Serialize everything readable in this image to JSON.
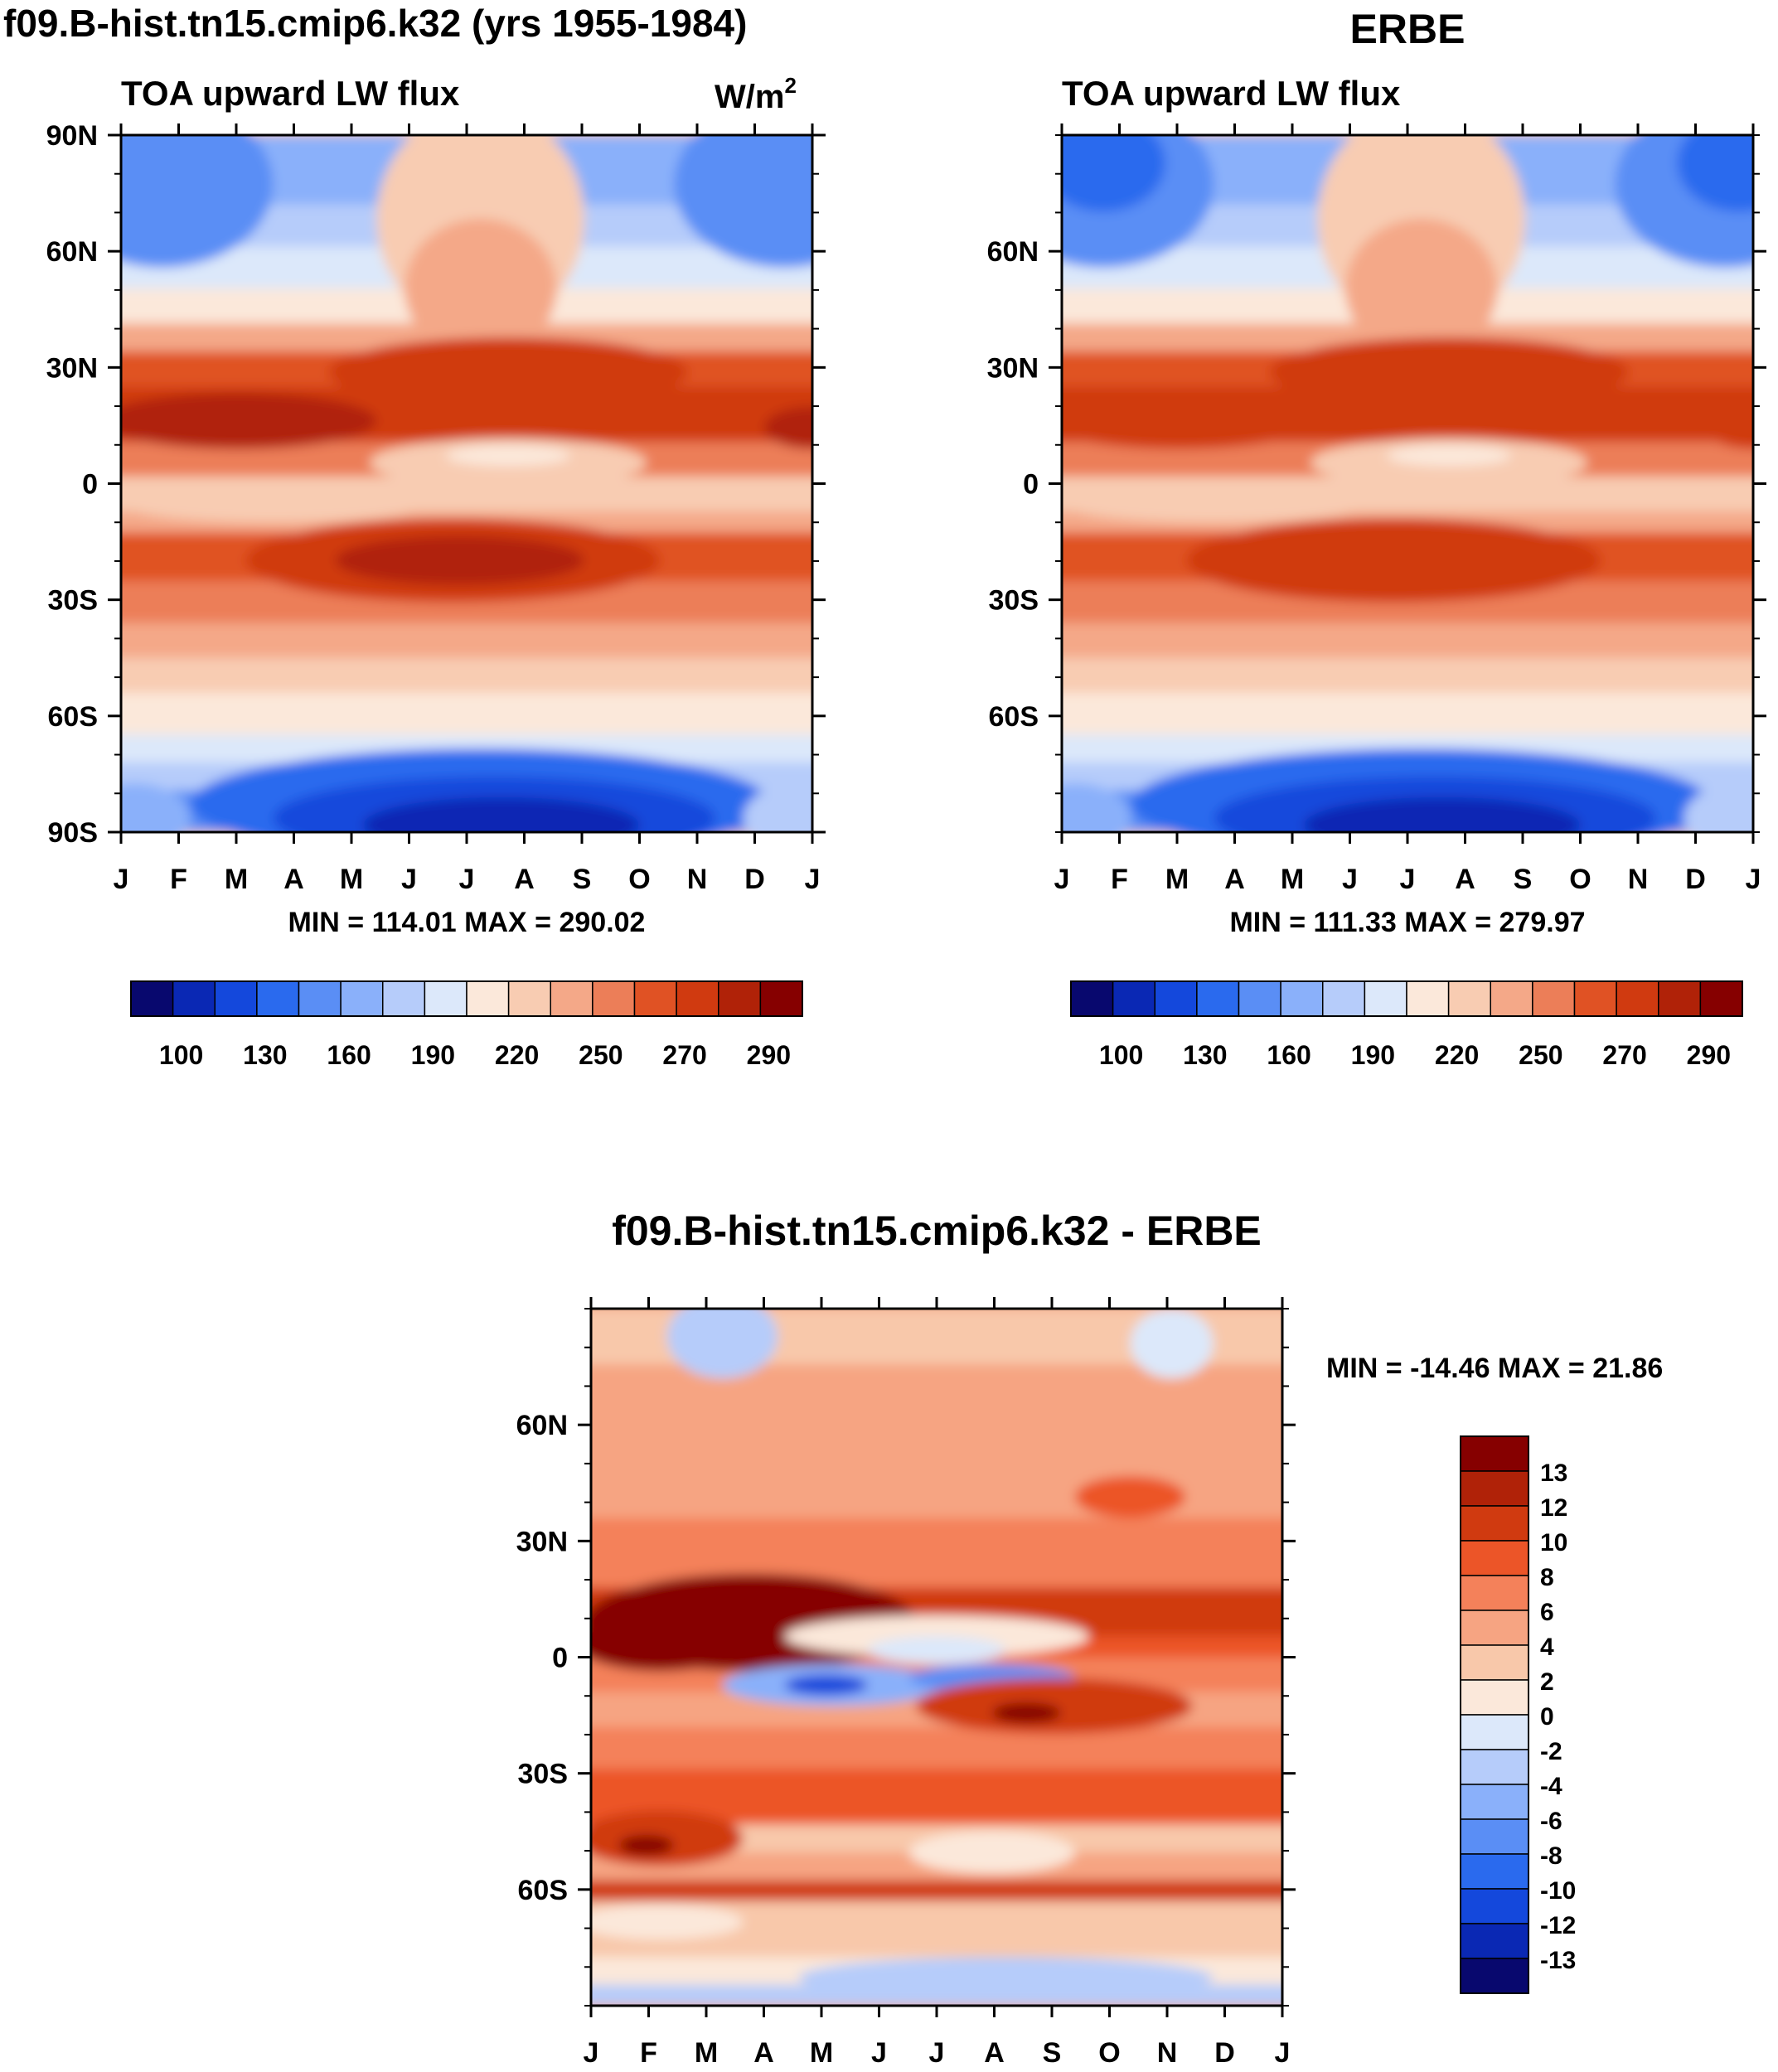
{
  "units_label": "W/m",
  "units_sup": "2",
  "colors": {
    "abs_levels": [
      "#08086e",
      "#0a28b4",
      "#1448dc",
      "#2a6aee",
      "#5a8ef5",
      "#8ab0fa",
      "#b6ccfa",
      "#dce8fa",
      "#fbe8da",
      "#f8ccb2",
      "#f4a888",
      "#ec7e58",
      "#e05224",
      "#d03a10",
      "#b02208",
      "#860000"
    ],
    "diff_levels": [
      "#860000",
      "#b02208",
      "#d03a10",
      "#ec5528",
      "#f4815a",
      "#f6a482",
      "#f8c8aa",
      "#fbe8da",
      "#dce8fa",
      "#b6ccfa",
      "#8ab0fa",
      "#5a8ef5",
      "#2a6aee",
      "#1448dc",
      "#0a28b4",
      "#08086e"
    ]
  },
  "chart_data": [
    {
      "type": "heatmap",
      "title": "f09.B-hist.tn15.cmip6.k32 (yrs 1955-1984)",
      "subtitle": "TOA upward LW flux",
      "units": "W/m2",
      "x_tick_labels": [
        "J",
        "F",
        "M",
        "A",
        "M",
        "J",
        "J",
        "A",
        "S",
        "O",
        "N",
        "D",
        "J"
      ],
      "y_tick_labels": [
        "90N",
        "60N",
        "30N",
        "0",
        "30S",
        "60S",
        "90S"
      ],
      "ylim": [
        -90,
        90
      ],
      "stats": "MIN = 114.01 MAX = 290.02",
      "colorbar_labels": [
        "100",
        "130",
        "160",
        "190",
        "220",
        "250",
        "270",
        "290"
      ],
      "min": 114.01,
      "max": 290.02
    },
    {
      "type": "heatmap",
      "title": "ERBE",
      "subtitle": "TOA upward LW flux",
      "x_tick_labels": [
        "J",
        "F",
        "M",
        "A",
        "M",
        "J",
        "J",
        "A",
        "S",
        "O",
        "N",
        "D",
        "J"
      ],
      "y_tick_labels": [
        "60N",
        "30N",
        "0",
        "30S",
        "60S"
      ],
      "ylim": [
        -90,
        90
      ],
      "stats": "MIN = 111.33 MAX = 279.97",
      "colorbar_labels": [
        "100",
        "130",
        "160",
        "190",
        "220",
        "250",
        "270",
        "290"
      ],
      "min": 111.33,
      "max": 279.97
    },
    {
      "type": "heatmap",
      "title": "f09.B-hist.tn15.cmip6.k32 - ERBE",
      "x_tick_labels": [
        "J",
        "F",
        "M",
        "A",
        "M",
        "J",
        "J",
        "A",
        "S",
        "O",
        "N",
        "D",
        "J"
      ],
      "y_tick_labels": [
        "60N",
        "30N",
        "0",
        "30S",
        "60S"
      ],
      "ylim": [
        -90,
        90
      ],
      "stats": "MIN = -14.46 MAX =  21.86",
      "colorbar_labels": [
        "13",
        "12",
        "10",
        "8",
        "6",
        "4",
        "2",
        "0",
        "-2",
        "-4",
        "-6",
        "-8",
        "-10",
        "-12",
        "-13"
      ],
      "min": -14.46,
      "max": 21.86
    }
  ]
}
